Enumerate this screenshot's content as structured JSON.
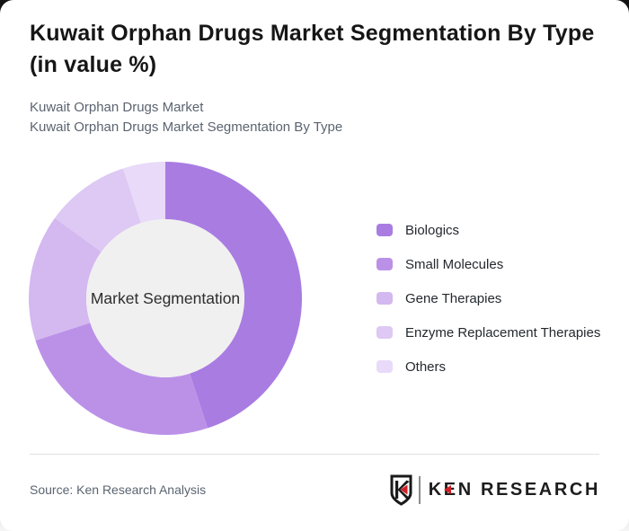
{
  "header": {
    "title": "Kuwait Orphan Drugs Market Segmentation By Type (in value %)",
    "subtitle_line1": "Kuwait Orphan Drugs Market",
    "subtitle_line2": "Kuwait Orphan Drugs Market Segmentation By Type"
  },
  "chart_data": {
    "type": "pie",
    "variant": "donut",
    "title": "Kuwait Orphan Drugs Market Segmentation By Type (in value %)",
    "center_label": "Market Segmentation",
    "units": "value %",
    "start_angle_deg": 0,
    "direction": "clockwise",
    "legend_position": "right",
    "hole_color": "#f0f0f0",
    "series": [
      {
        "name": "Biologics",
        "value": 45,
        "color": "#a97ce2"
      },
      {
        "name": "Small Molecules",
        "value": 25,
        "color": "#bb91e8"
      },
      {
        "name": "Gene Therapies",
        "value": 15,
        "color": "#d4b8f0"
      },
      {
        "name": "Enzyme Replacement Therapies",
        "value": 10,
        "color": "#ddc9f3"
      },
      {
        "name": "Others",
        "value": 5,
        "color": "#e8daf8"
      }
    ]
  },
  "footer": {
    "source": "Source: Ken Research Analysis",
    "brand": "KEN RESEARCH",
    "brand_colors": {
      "text": "#1d1d1d",
      "accent": "#cf2127"
    }
  }
}
